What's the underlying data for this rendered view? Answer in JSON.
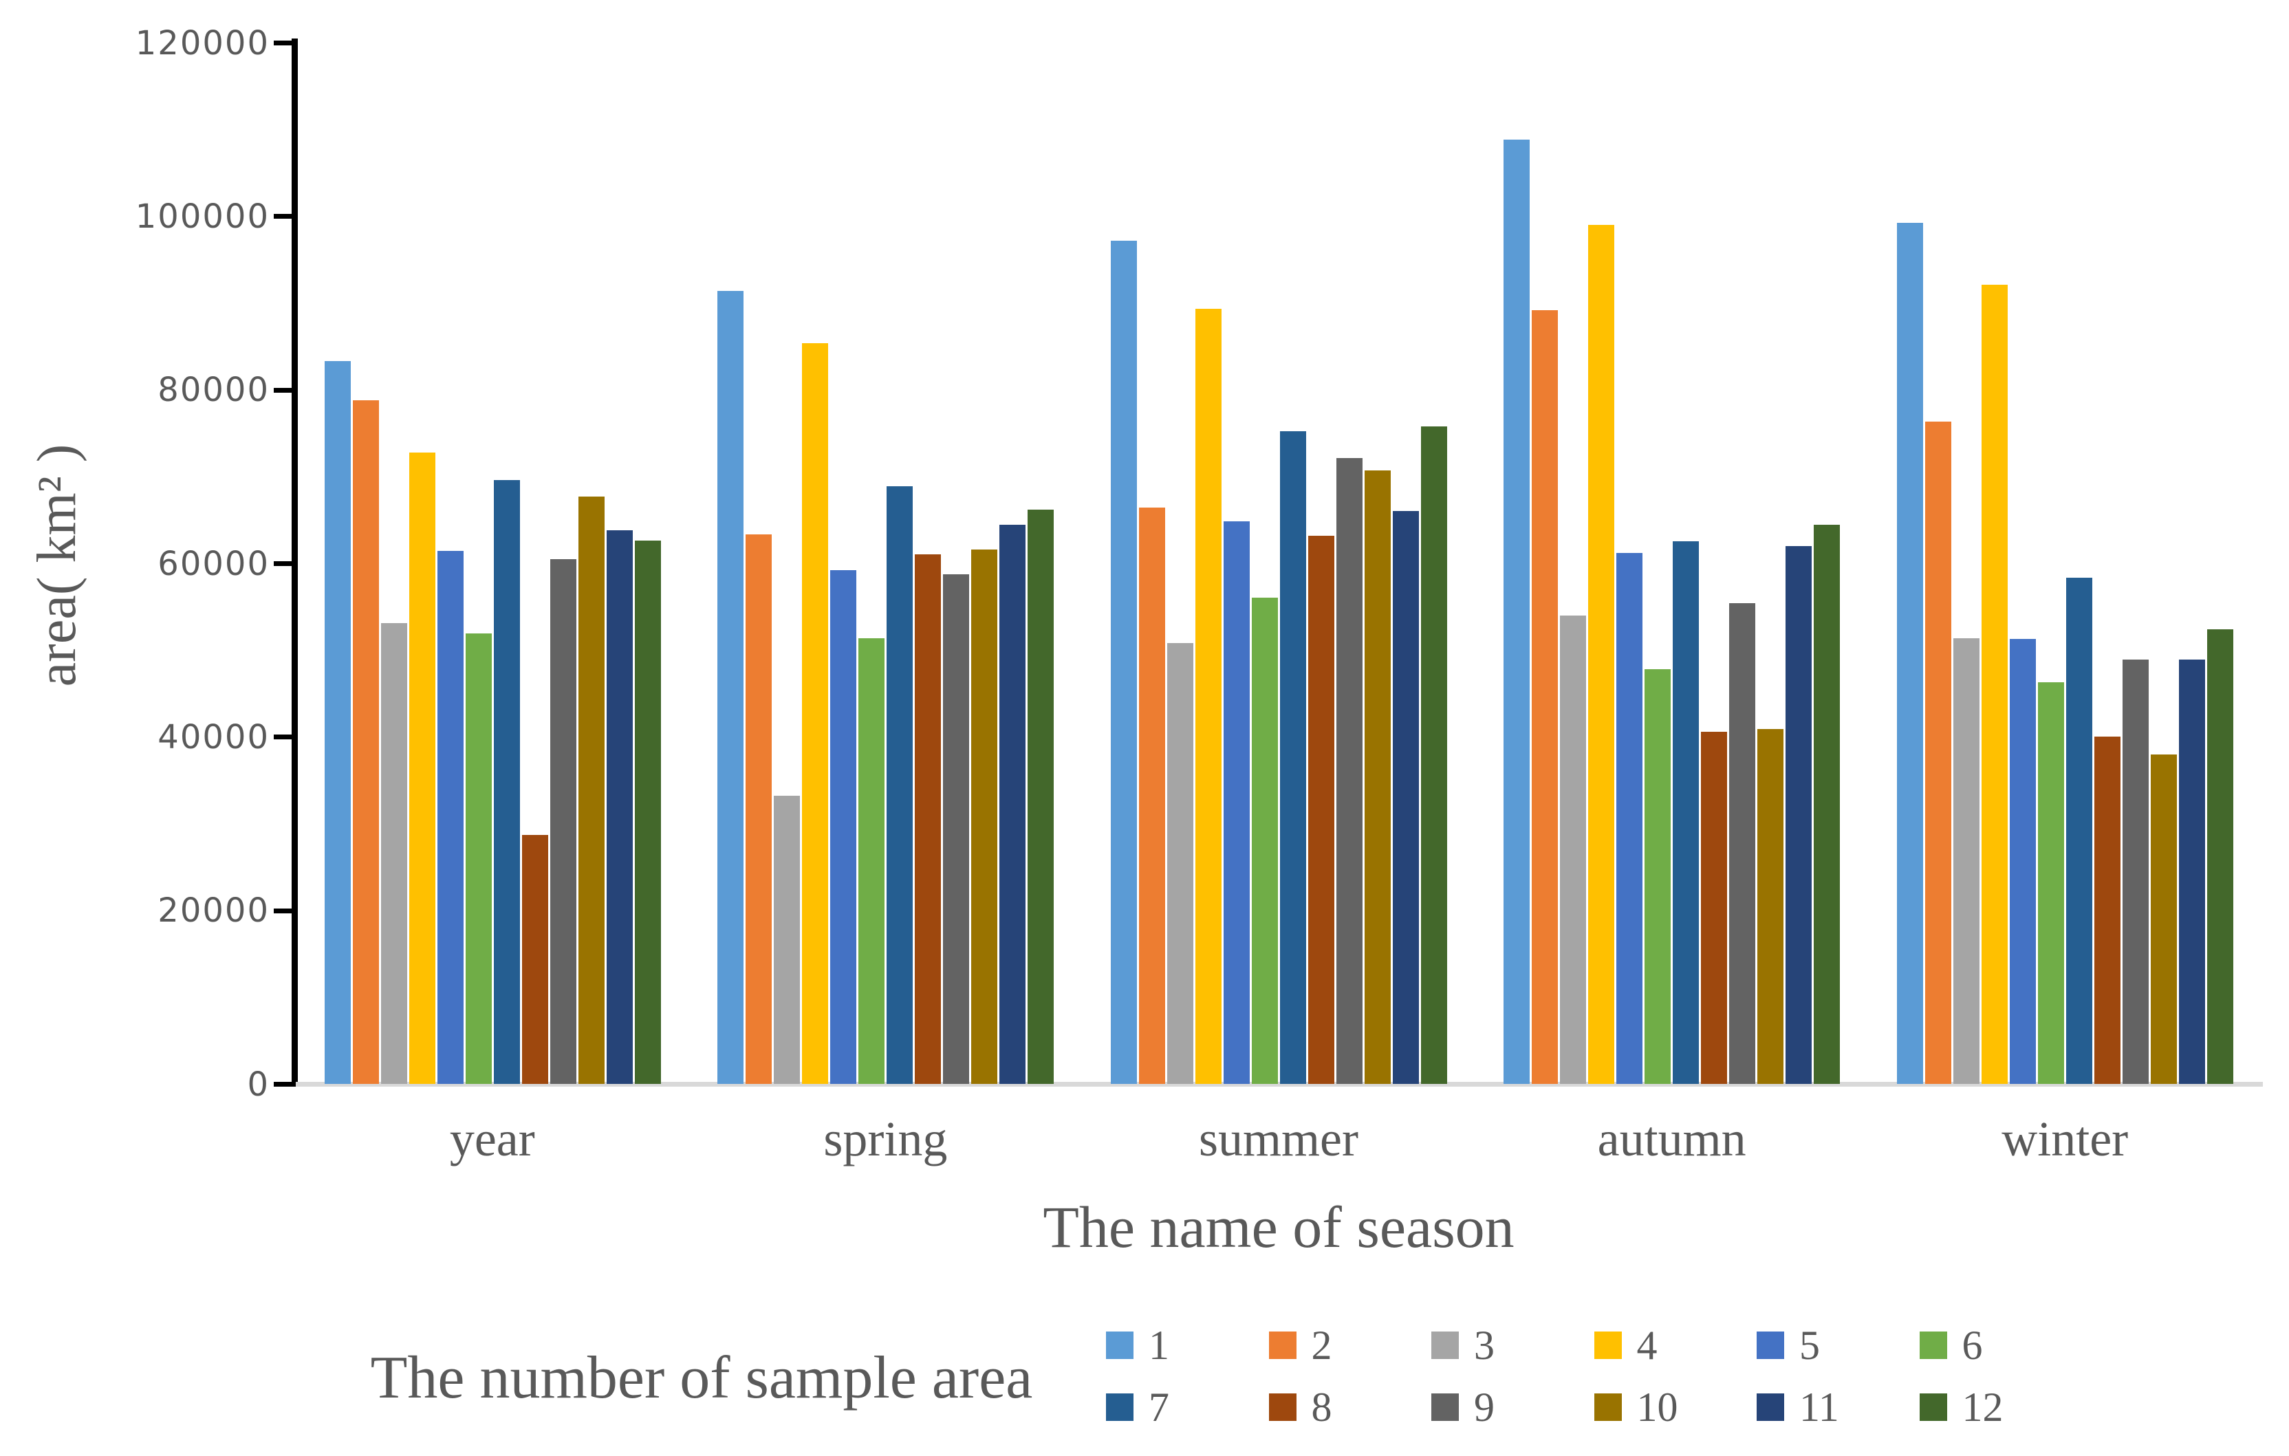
{
  "chart_data": {
    "type": "bar",
    "title": "",
    "xlabel": "The name of season",
    "ylabel": "area( km² )",
    "legend_title": "The number of sample area",
    "legend_position": "bottom",
    "grid": false,
    "categories": [
      "year",
      "spring",
      "summer",
      "autumn",
      "winter"
    ],
    "ylim": [
      0,
      120000
    ],
    "y_ticks": [
      0,
      20000,
      40000,
      60000,
      80000,
      100000,
      120000
    ],
    "series": [
      {
        "name": "1",
        "color": "#5B9BD5",
        "values": [
          83300,
          91400,
          97200,
          108800,
          99200
        ]
      },
      {
        "name": "2",
        "color": "#ED7D31",
        "values": [
          78800,
          63300,
          66400,
          89200,
          76300
        ]
      },
      {
        "name": "3",
        "color": "#A5A5A5",
        "values": [
          53100,
          33200,
          50800,
          54000,
          51400
        ]
      },
      {
        "name": "4",
        "color": "#FFC000",
        "values": [
          72800,
          85400,
          89300,
          99000,
          92100
        ]
      },
      {
        "name": "5",
        "color": "#4472C4",
        "values": [
          61400,
          59200,
          64800,
          61200,
          51300
        ]
      },
      {
        "name": "6",
        "color": "#70AD47",
        "values": [
          51900,
          51400,
          56000,
          47800,
          46300
        ]
      },
      {
        "name": "7",
        "color": "#255E91",
        "values": [
          69600,
          68900,
          75200,
          62500,
          58300
        ]
      },
      {
        "name": "8",
        "color": "#9E480E",
        "values": [
          28700,
          61000,
          63200,
          40600,
          40000
        ]
      },
      {
        "name": "9",
        "color": "#636363",
        "values": [
          60500,
          58700,
          72100,
          55400,
          48900
        ]
      },
      {
        "name": "10",
        "color": "#997300",
        "values": [
          67700,
          61600,
          70700,
          40900,
          38000
        ]
      },
      {
        "name": "11",
        "color": "#264478",
        "values": [
          63800,
          64400,
          66000,
          62000,
          48900
        ]
      },
      {
        "name": "12",
        "color": "#43682B",
        "values": [
          62600,
          66200,
          75800,
          64400,
          52400
        ]
      }
    ],
    "colors": {
      "axis_line": "#000000",
      "baseline": "#D9D9D9",
      "text": "#595959"
    }
  }
}
